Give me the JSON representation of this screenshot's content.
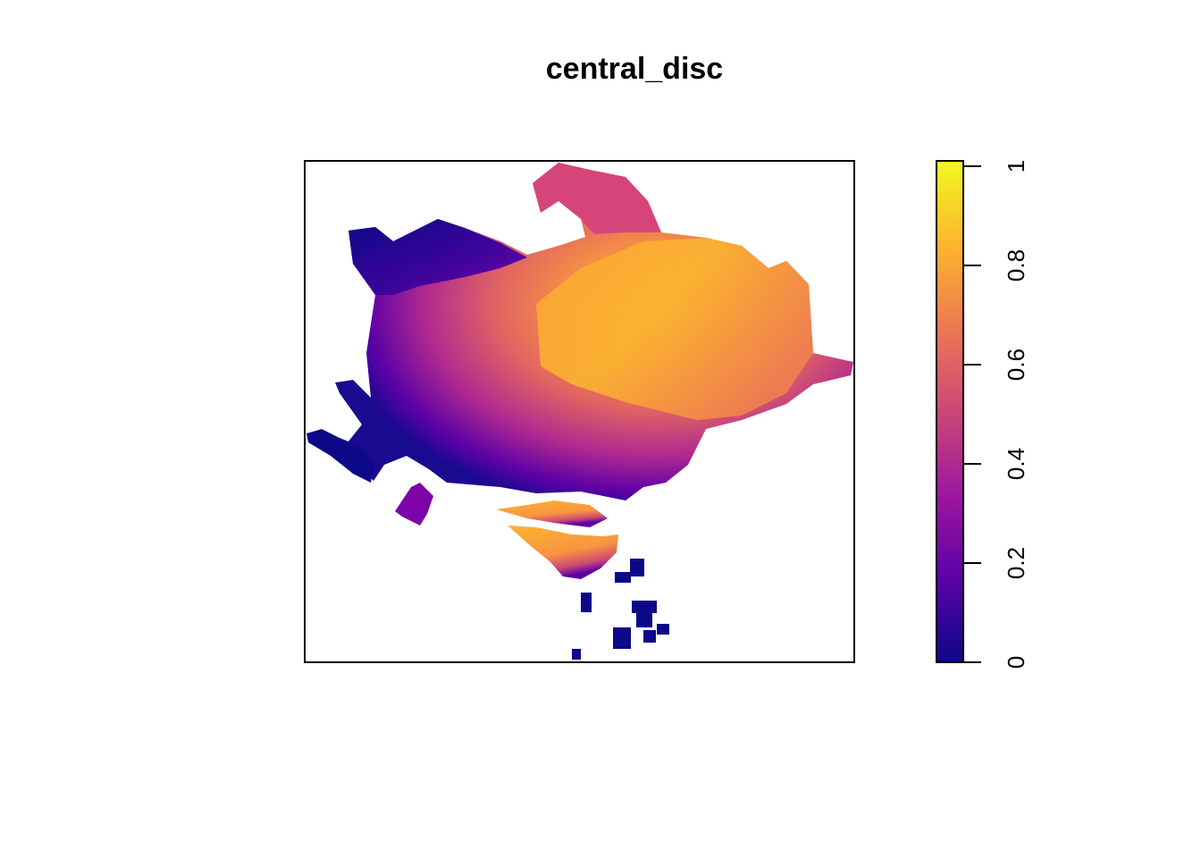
{
  "chart_data": {
    "type": "heatmap",
    "title": "central_disc",
    "xlabel": "",
    "ylabel": "",
    "axes_visible": false,
    "grid": false,
    "legend_placement": "right",
    "colorbar": {
      "range": [
        0,
        1
      ],
      "ticks": [
        0,
        0.2,
        0.4,
        0.6,
        0.8,
        1
      ],
      "tick_labels": [
        "0",
        "0.2",
        "0.4",
        "0.6",
        "0.8",
        "1"
      ],
      "palette": "plasma",
      "stops": [
        "#0d0887",
        "#5c01a6",
        "#9c179e",
        "#cc4778",
        "#ed7953",
        "#fdb42f",
        "#f0f921"
      ]
    },
    "description_values": {
      "northwest_region": 0.05,
      "west_region": 0.25,
      "center_region": 0.5,
      "east_center_region": 0.75,
      "southeast_lobe": 0.72,
      "southern_islands": 0.05
    }
  }
}
